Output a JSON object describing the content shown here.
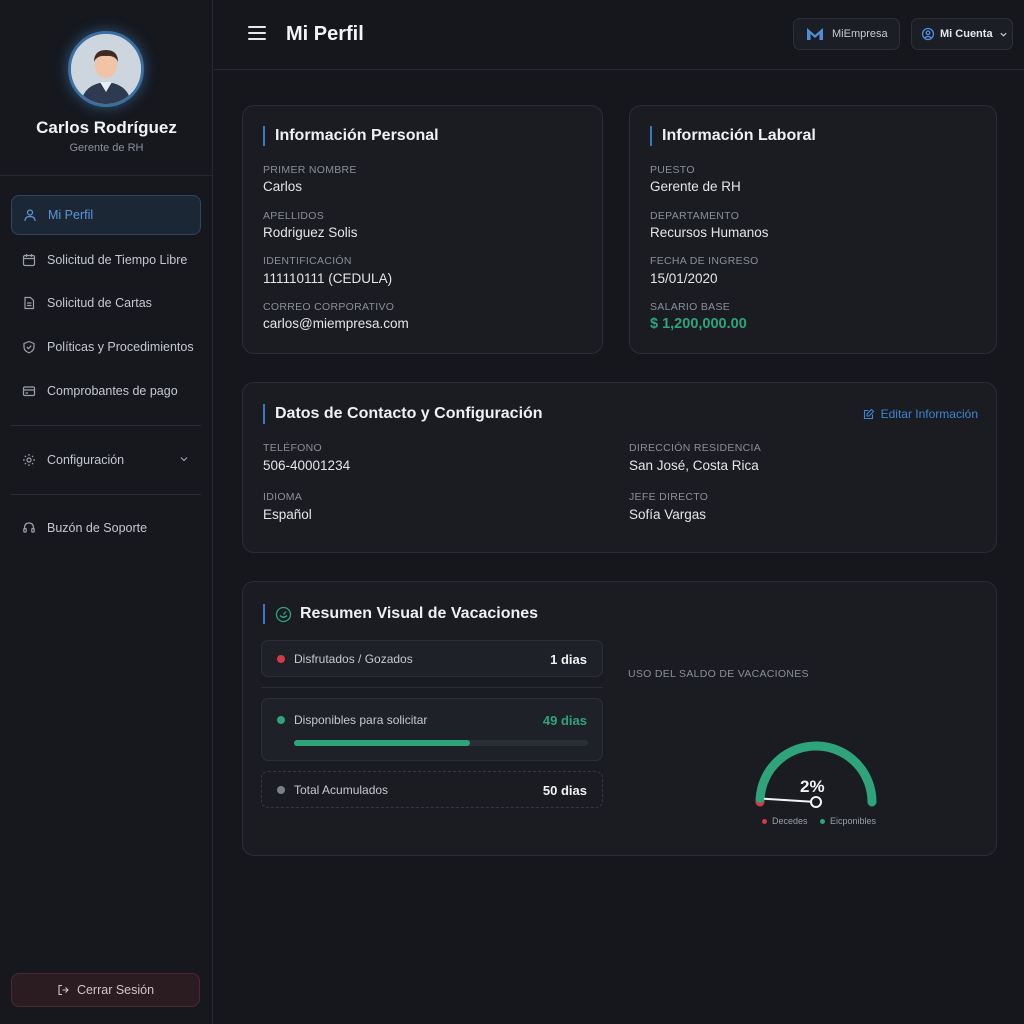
{
  "colors": {
    "accent": "#3b78c2",
    "green": "#2fa37a",
    "red": "#d23b45",
    "gray": "#7a7f88"
  },
  "user": {
    "name": "Carlos Rodríguez",
    "role": "Gerente de RH"
  },
  "sidebar": {
    "items": [
      {
        "label": "Mi Perfil",
        "icon": "user-icon"
      },
      {
        "label": "Solicitud de Tiempo Libre",
        "icon": "calendar-icon"
      },
      {
        "label": "Solicitud de Cartas",
        "icon": "document-icon"
      },
      {
        "label": "Políticas y Procedimientos",
        "icon": "shield-icon"
      },
      {
        "label": "Comprobantes de pago",
        "icon": "card-icon"
      },
      {
        "label": "Configuración",
        "icon": "gear-icon"
      },
      {
        "label": "Buzón de Soporte",
        "icon": "headset-icon"
      }
    ],
    "logout": "Cerrar Sesión"
  },
  "header": {
    "title": "Mi Perfil",
    "company": "MiEmpresa",
    "account": "Mi Cuenta"
  },
  "personal": {
    "title": "Información Personal",
    "fields": [
      {
        "label": "Primer nombre",
        "value": "Carlos"
      },
      {
        "label": "Apellidos",
        "value": "Rodriguez Solis"
      },
      {
        "label": "Identificación",
        "value": "111110111 (CEDULA)"
      },
      {
        "label": "Correo corporativo",
        "value": "carlos@miempresa.com"
      }
    ]
  },
  "laboral": {
    "title": "Información Laboral",
    "fields": [
      {
        "label": "Puesto",
        "value": "Gerente de RH"
      },
      {
        "label": "Departamento",
        "value": "Recursos Humanos"
      },
      {
        "label": "Fecha de ingreso",
        "value": "15/01/2020"
      },
      {
        "label": "Salario base",
        "value": "$ 1,200,000.00"
      }
    ]
  },
  "contact": {
    "title": "Datos de Contacto y Configuración",
    "edit": "Editar Información",
    "fields": [
      {
        "label": "Teléfono",
        "value": "506-40001234"
      },
      {
        "label": "Dirección residencia",
        "value": "San José, Costa Rica"
      },
      {
        "label": "Idioma",
        "value": "Español"
      },
      {
        "label": "Jefe directo",
        "value": "Sofía Vargas"
      }
    ]
  },
  "vacations": {
    "title": "Resumen Visual de Vacaciones",
    "rows": [
      {
        "label": "Disfrutados / Gozados",
        "value": "1 dias"
      },
      {
        "label": "Disponibles para solicitar",
        "value": "49 dias",
        "progress": 0.6
      },
      {
        "label": "Total Acumulados",
        "value": "50 dias"
      }
    ],
    "chart_caption": "Uso del saldo de vacaciones"
  },
  "chart_data": {
    "type": "pie",
    "title": "",
    "categories": [
      "Decedes",
      "Eicponibles"
    ],
    "values": [
      1,
      49
    ],
    "center_label": "2%"
  }
}
